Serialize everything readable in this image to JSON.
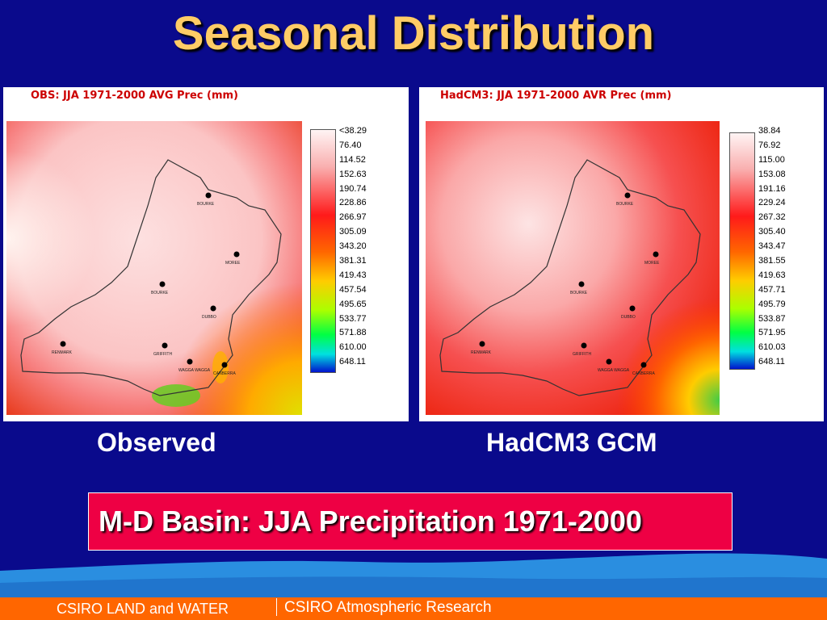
{
  "slide": {
    "title": "Seasonal Distribution",
    "banner": "M-D Basin: JJA Precipitation 1971-2000"
  },
  "panels": {
    "observed": {
      "map_title": "OBS: JJA 1971-2000 AVG Prec (mm)",
      "caption": "Observed",
      "legend": [
        "<38.29",
        "76.40",
        "114.52",
        "152.63",
        "190.74",
        "228.86",
        "266.97",
        "305.09",
        "343.20",
        "381.31",
        "419.43",
        "457.54",
        "495.65",
        "533.77",
        "571.88",
        "610.00",
        "648.11"
      ]
    },
    "hadcm3": {
      "map_title": "HadCM3: JJA 1971-2000 AVR Prec (mm)",
      "caption": "HadCM3 GCM",
      "legend": [
        "38.84",
        "76.92",
        "115.00",
        "153.08",
        "191.16",
        "229.24",
        "267.32",
        "305.40",
        "343.47",
        "381.55",
        "419.63",
        "457.71",
        "495.79",
        "533.87",
        "571.95",
        "610.03",
        "648.11"
      ]
    }
  },
  "towns": [
    "BOURKE",
    "MOREE",
    "DUBBO",
    "GRIFFITH",
    "RENMARK",
    "WAGGA WAGGA",
    "CANBERRA"
  ],
  "colors": {
    "background": "#0a0a8c",
    "title": "#ffcc66",
    "banner": "#ee0044",
    "footer": "#ff6600"
  },
  "footer": {
    "left": "CSIRO LAND and WATER",
    "right": "CSIRO Atmospheric Research"
  }
}
